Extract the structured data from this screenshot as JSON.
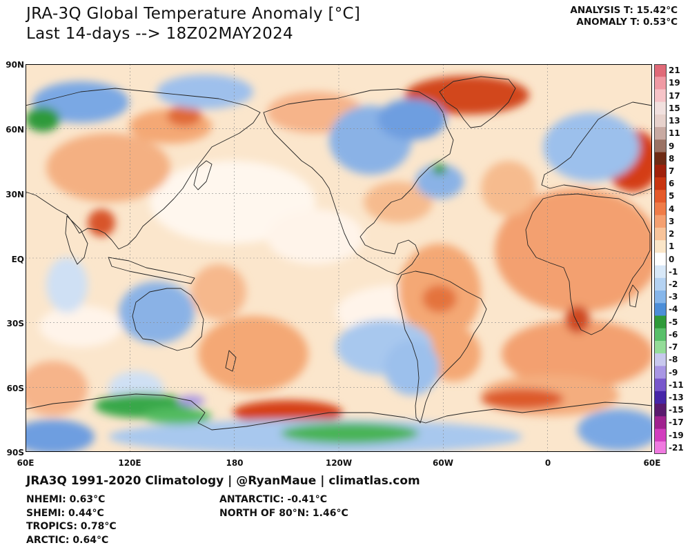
{
  "title_line1": "JRA-3Q Global Temperature Anomaly [°C]",
  "title_line2": "Last 14-days --> 18Z02MAY2024",
  "analysis": "ANALYSIS T: 15.42°C",
  "anomaly": "ANOMALY T: 0.53°C",
  "footer": "JRA3Q 1991-2020 Climatology | @RyanMaue | climatlas.com",
  "stats_left": [
    "NHEMI: 0.63°C",
    "SHEMI: 0.44°C",
    "TROPICS: 0.78°C",
    "ARCTIC: 0.64°C"
  ],
  "stats_right": [
    "ANTARCTIC: -0.41°C",
    "NORTH OF 80°N: 1.46°C"
  ],
  "lat_labels": [
    "90N",
    "60N",
    "30N",
    "EQ",
    "30S",
    "60S",
    "90S"
  ],
  "lon_labels": [
    "60E",
    "120E",
    "180",
    "120W",
    "60W",
    "0",
    "60E"
  ],
  "colorbar": {
    "labels": [
      "21",
      "19",
      "17",
      "15",
      "13",
      "11",
      "9",
      "8",
      "7",
      "6",
      "5",
      "4",
      "3",
      "2",
      "1",
      "0",
      "-1",
      "-2",
      "-3",
      "-4",
      "-5",
      "-6",
      "-7",
      "-8",
      "-9",
      "-11",
      "-13",
      "-15",
      "-17",
      "-19",
      "-21"
    ],
    "colors": [
      "#e06a78",
      "#f09aa4",
      "#f6c4c8",
      "#f1e1df",
      "#e7d2cc",
      "#c8aaa2",
      "#9a7264",
      "#6e2a14",
      "#a0200a",
      "#c83410",
      "#e55a2a",
      "#f07c48",
      "#f5a070",
      "#f8c49a",
      "#fbe6c8",
      "#ffffff",
      "#d8e8f8",
      "#b4d2f2",
      "#86b6ea",
      "#4c8ed8",
      "#2e9a3a",
      "#58c06a",
      "#94dc98",
      "#c8c8ee",
      "#a896e4",
      "#7858cc",
      "#4626a8",
      "#5a1a6e",
      "#a0228e",
      "#d23ebe",
      "#f07ae0"
    ]
  },
  "colors": {
    "ocean_base": "#fbe3c6",
    "warm": "#f2a06e",
    "hot": "#c8341a",
    "cool": "#b7d4f0",
    "cold": "#5a90d8",
    "green": "#34a844",
    "purple": "#9a7ad6"
  }
}
